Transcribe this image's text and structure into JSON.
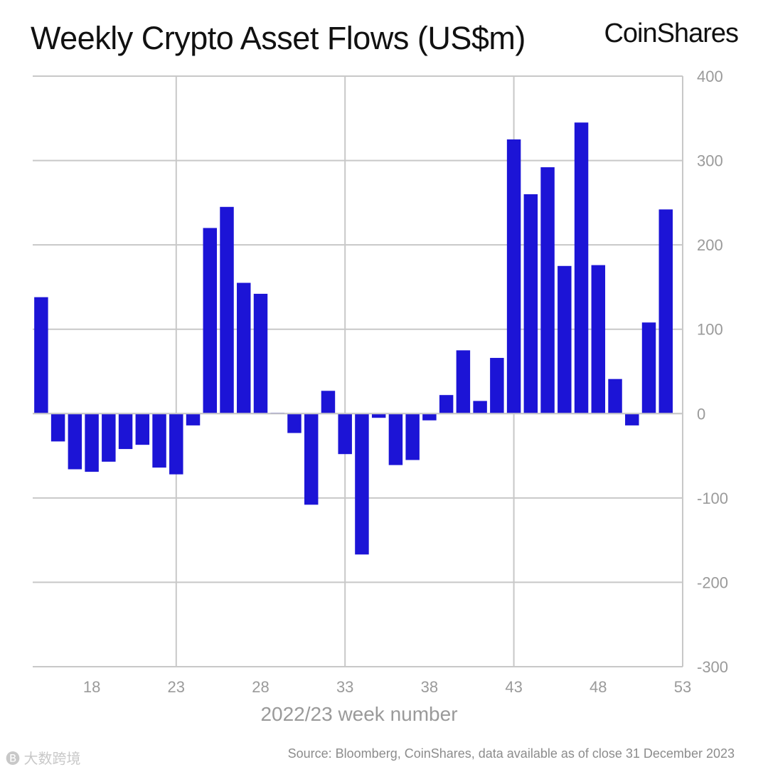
{
  "header": {
    "title": "Weekly Crypto Asset Flows (US$m)",
    "brand": "CoinShares"
  },
  "footer": {
    "source": "Source: Bloomberg, CoinShares, data available as of close 31 December 2023",
    "watermark": "大数跨境"
  },
  "colors": {
    "bar": "#1c14d6",
    "grid": "#c8c8c8",
    "axis": "#9a9a9a"
  },
  "chart_data": {
    "type": "bar",
    "title": "Weekly Crypto Asset Flows (US$m)",
    "xlabel": "2022/23 week number",
    "ylabel": "",
    "ylim": [
      -300,
      400
    ],
    "yticks": [
      400,
      300,
      200,
      100,
      0,
      -100,
      -200,
      -300
    ],
    "xticks": [
      18,
      23,
      28,
      33,
      38,
      43,
      48,
      53
    ],
    "xlim": [
      14.5,
      53
    ],
    "y_axis_position": "right",
    "grid": true,
    "categories": [
      15,
      16,
      17,
      18,
      19,
      20,
      21,
      22,
      23,
      24,
      25,
      26,
      27,
      28,
      29,
      30,
      31,
      32,
      33,
      34,
      35,
      36,
      37,
      38,
      39,
      40,
      41,
      42,
      43,
      44,
      45,
      46,
      47,
      48,
      49,
      50,
      51,
      52
    ],
    "values": [
      138,
      -33,
      -66,
      -69,
      -57,
      -42,
      -37,
      -64,
      -72,
      -14,
      220,
      245,
      155,
      142,
      1,
      -23,
      -108,
      27,
      -48,
      -167,
      -5,
      -61,
      -55,
      -8,
      22,
      75,
      15,
      66,
      325,
      260,
      292,
      175,
      345,
      176,
      41,
      -14,
      108,
      242
    ]
  }
}
